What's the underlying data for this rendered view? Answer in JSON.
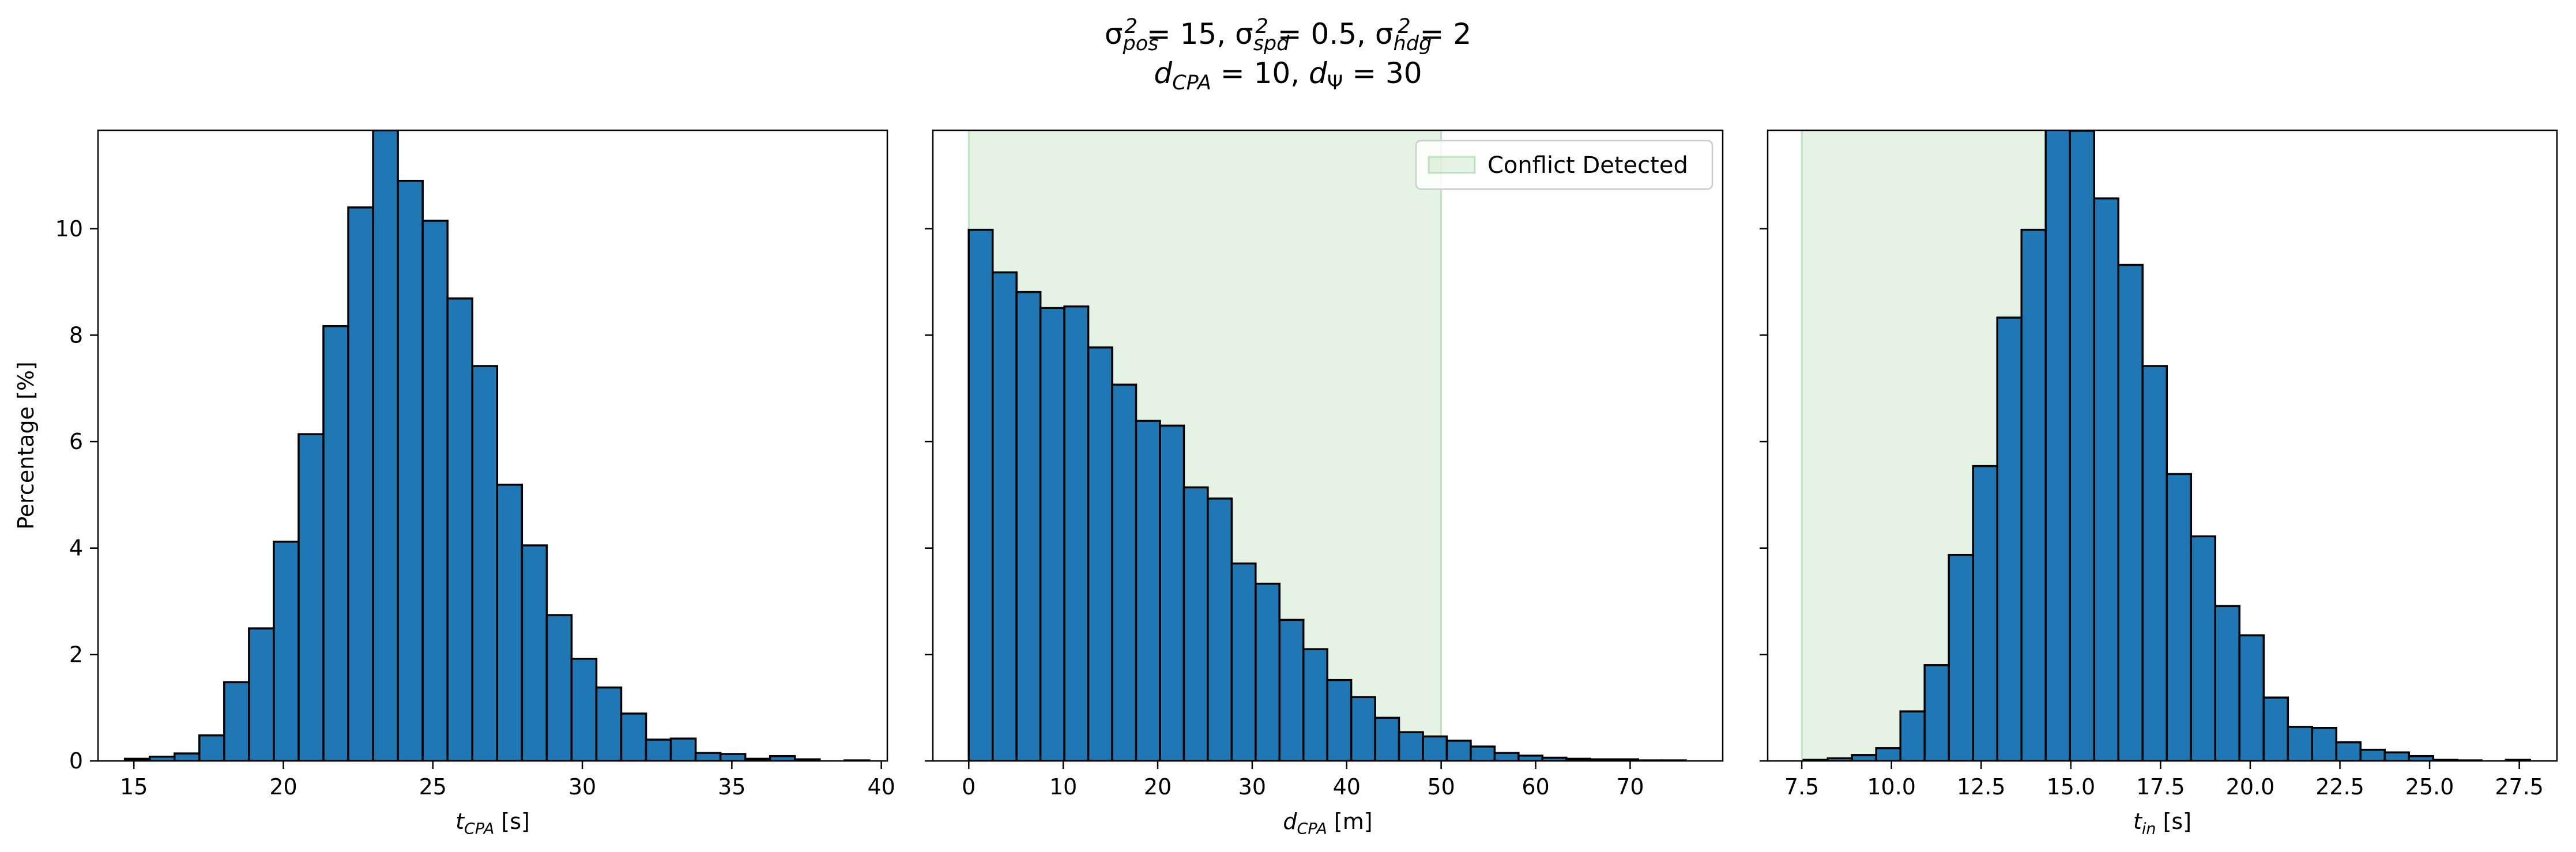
{
  "figure": {
    "title_line1_parts": [
      {
        "t": "σ",
        "s": "base"
      },
      {
        "t": "pos",
        "s": "sub"
      },
      {
        "t": "2",
        "s": "sup"
      },
      {
        "t": " = 15, ",
        "s": "base"
      },
      {
        "t": "σ",
        "s": "base"
      },
      {
        "t": "spd",
        "s": "sub"
      },
      {
        "t": "2",
        "s": "sup"
      },
      {
        "t": " = 0.5, ",
        "s": "base"
      },
      {
        "t": "σ",
        "s": "base"
      },
      {
        "t": "hdg",
        "s": "sub"
      },
      {
        "t": "2",
        "s": "sup"
      },
      {
        "t": " = 2",
        "s": "base"
      }
    ],
    "title_line2_parts": [
      {
        "t": "d",
        "s": "base-italic"
      },
      {
        "t": "CPA",
        "s": "sub"
      },
      {
        "t": " = 10, ",
        "s": "base"
      },
      {
        "t": "d",
        "s": "base-italic"
      },
      {
        "t": "Ψ",
        "s": "sub-upright"
      },
      {
        "t": " = 30",
        "s": "base"
      }
    ],
    "ylabel": "Percentage [%]",
    "bar_color": "#1f77b4",
    "bar_edge_color": "#000000",
    "shade_color": "#2ca02c",
    "legend_label": "Conflict Detected"
  },
  "chart_data": [
    {
      "type": "bar",
      "name": "t_CPA histogram",
      "xlabel_parts": [
        {
          "t": "t",
          "s": "italic"
        },
        {
          "t": "CPA",
          "s": "sub"
        },
        {
          "t": " [s]",
          "s": "base"
        }
      ],
      "xlim": [
        13.8,
        40.2
      ],
      "ylim": [
        0,
        11.85
      ],
      "xticks": [
        15,
        20,
        25,
        30,
        35,
        40
      ],
      "xtick_labels": [
        "15",
        "20",
        "25",
        "30",
        "35",
        "40"
      ],
      "yticks": [
        0,
        2,
        4,
        6,
        8,
        10
      ],
      "ytick_labels": [
        "0",
        "2",
        "4",
        "6",
        "8",
        "10"
      ],
      "bin_start": 14.7,
      "bin_width": 0.83,
      "values": [
        0.04,
        0.08,
        0.14,
        0.48,
        1.48,
        2.49,
        4.12,
        6.14,
        8.17,
        10.4,
        11.85,
        10.9,
        10.15,
        8.69,
        7.42,
        5.19,
        4.05,
        2.74,
        1.92,
        1.38,
        0.89,
        0.4,
        0.42,
        0.15,
        0.13,
        0.04,
        0.09,
        0.03,
        0.0,
        0.01
      ],
      "shade": null
    },
    {
      "type": "bar",
      "name": "d_CPA histogram",
      "xlabel_parts": [
        {
          "t": "d",
          "s": "italic"
        },
        {
          "t": "CPA",
          "s": "sub"
        },
        {
          "t": " [m]",
          "s": "base"
        }
      ],
      "xlim": [
        -3.8,
        79.8
      ],
      "ylim": [
        0,
        11.85
      ],
      "xticks": [
        0,
        10,
        20,
        30,
        40,
        50,
        60,
        70
      ],
      "xtick_labels": [
        "0",
        "10",
        "20",
        "30",
        "40",
        "50",
        "60",
        "70"
      ],
      "yticks": [
        0,
        2,
        4,
        6,
        8,
        10
      ],
      "ytick_labels": [
        "",
        "",
        "",
        "",
        "",
        ""
      ],
      "bin_start": 0,
      "bin_width": 2.53,
      "values": [
        9.98,
        9.18,
        8.81,
        8.51,
        8.54,
        7.77,
        7.07,
        6.39,
        6.3,
        5.14,
        4.93,
        3.71,
        3.33,
        2.65,
        2.1,
        1.52,
        1.2,
        0.81,
        0.54,
        0.46,
        0.38,
        0.27,
        0.15,
        0.1,
        0.06,
        0.04,
        0.03,
        0.03,
        0.01,
        0.01
      ],
      "shade": [
        0,
        50
      ],
      "legend": "upper right"
    },
    {
      "type": "bar",
      "name": "t_in histogram",
      "xlabel_parts": [
        {
          "t": "t",
          "s": "italic"
        },
        {
          "t": "in",
          "s": "sub"
        },
        {
          "t": " [s]",
          "s": "base"
        }
      ],
      "xlim": [
        6.55,
        28.55
      ],
      "ylim": [
        0,
        11.85
      ],
      "xticks": [
        7.5,
        10.0,
        12.5,
        15.0,
        17.5,
        20.0,
        22.5,
        25.0,
        27.5
      ],
      "xtick_labels": [
        "7.5",
        "10.0",
        "12.5",
        "15.0",
        "17.5",
        "20.0",
        "22.5",
        "25.0",
        "27.5"
      ],
      "yticks": [
        0,
        2,
        4,
        6,
        8,
        10
      ],
      "ytick_labels": [
        "",
        "",
        "",
        "",
        "",
        ""
      ],
      "bin_start": 7.55,
      "bin_width": 0.675,
      "values": [
        0.02,
        0.05,
        0.11,
        0.24,
        0.93,
        1.8,
        3.87,
        5.54,
        8.33,
        9.98,
        11.9,
        11.84,
        10.57,
        9.32,
        7.42,
        5.39,
        4.22,
        2.91,
        2.36,
        1.19,
        0.64,
        0.62,
        0.35,
        0.21,
        0.16,
        0.09,
        0.02,
        0.01,
        0.0,
        0.02
      ],
      "shade": [
        7.5,
        15.0
      ]
    }
  ]
}
